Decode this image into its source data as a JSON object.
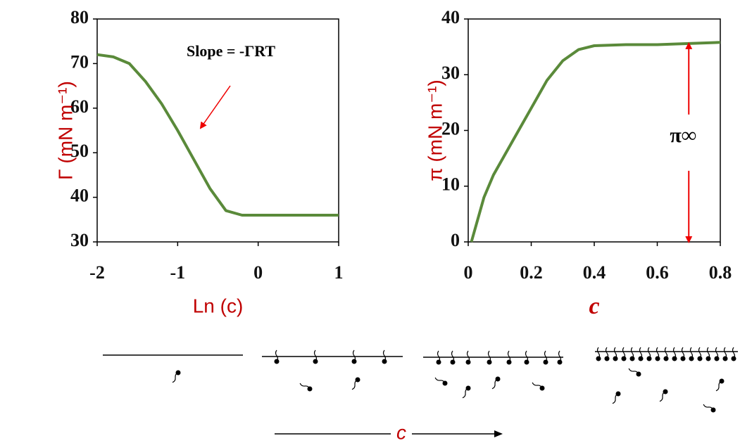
{
  "chart_data": [
    {
      "type": "line",
      "x_label": "Ln (c)",
      "y_label": "Γ (mN m⁻¹)",
      "xlim": [
        -2,
        1
      ],
      "ylim": [
        30,
        80
      ],
      "xticks": [
        -2,
        -1,
        0,
        1
      ],
      "yticks": [
        30,
        40,
        50,
        60,
        70,
        80
      ],
      "series": [
        {
          "color": "#5a8a3a",
          "x": [
            -2,
            -1.8,
            -1.6,
            -1.4,
            -1.2,
            -1,
            -0.8,
            -0.6,
            -0.4,
            -0.2,
            0,
            0.5,
            1
          ],
          "values": [
            72,
            71.5,
            70,
            66,
            61,
            55,
            48.5,
            42,
            37,
            36,
            36,
            36,
            36
          ]
        }
      ],
      "annotations": [
        {
          "text": "Slope = -ΓRT"
        }
      ]
    },
    {
      "type": "line",
      "x_label": "c",
      "y_label": "π (mN m⁻¹)",
      "xlim": [
        0,
        0.8
      ],
      "ylim": [
        0,
        40
      ],
      "xticks": [
        0,
        0.2,
        0.4,
        0.6,
        0.8
      ],
      "yticks": [
        0,
        10,
        20,
        30,
        40
      ],
      "series": [
        {
          "color": "#5a8a3a",
          "x": [
            0.01,
            0.05,
            0.08,
            0.15,
            0.2,
            0.25,
            0.3,
            0.35,
            0.4,
            0.5,
            0.6,
            0.7,
            0.8
          ],
          "values": [
            0,
            8,
            12,
            19,
            24,
            29,
            32.5,
            34.5,
            35.2,
            35.4,
            35.4,
            35.6,
            35.8
          ]
        }
      ],
      "annotations": [
        {
          "text": "π∞",
          "x": 0.7,
          "y_range": [
            0,
            35.6
          ]
        }
      ]
    }
  ],
  "diagram": {
    "axis_label": "c"
  }
}
